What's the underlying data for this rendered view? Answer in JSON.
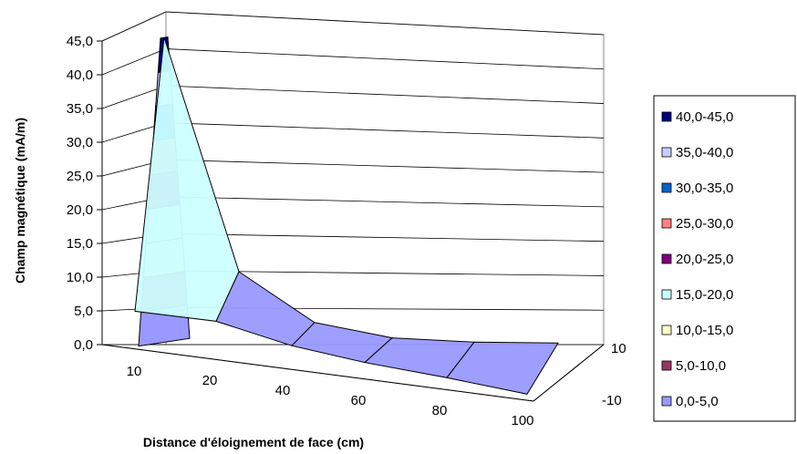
{
  "chart_data": {
    "type": "surface",
    "title": "",
    "ylabel": "Champ magnétique (mA/m)",
    "xlabel": "Distance d'éloignement de face (cm)",
    "zlim": [
      0,
      45
    ],
    "z_tick_labels": [
      "0,0",
      "5,0",
      "10,0",
      "15,0",
      "20,0",
      "25,0",
      "30,0",
      "35,0",
      "40,0",
      "45,0"
    ],
    "x_categories": [
      "10",
      "20",
      "40",
      "60",
      "80",
      "100"
    ],
    "depth_categories": [
      "10",
      "-10"
    ],
    "series": [
      {
        "depth": "10",
        "values": [
          45,
          10,
          3,
          1,
          0.5,
          0.5
        ]
      },
      {
        "depth": "-10",
        "values": [
          4,
          4,
          2,
          1,
          0.5,
          0.5
        ]
      }
    ],
    "legend": {
      "placement": "right",
      "entries": [
        {
          "label": "40,0-45,0",
          "color": "#000080"
        },
        {
          "label": "35,0-40,0",
          "color": "#ccccff"
        },
        {
          "label": "30,0-35,0",
          "color": "#0066cc"
        },
        {
          "label": "25,0-30,0",
          "color": "#ff8080"
        },
        {
          "label": "20,0-25,0",
          "color": "#800080"
        },
        {
          "label": "15,0-20,0",
          "color": "#ccffff"
        },
        {
          "label": "10,0-15,0",
          "color": "#ffffcc"
        },
        {
          "label": "5,0-10,0",
          "color": "#993366"
        },
        {
          "label": "0,0-5,0",
          "color": "#9999ff"
        }
      ]
    },
    "gridlines": true
  }
}
